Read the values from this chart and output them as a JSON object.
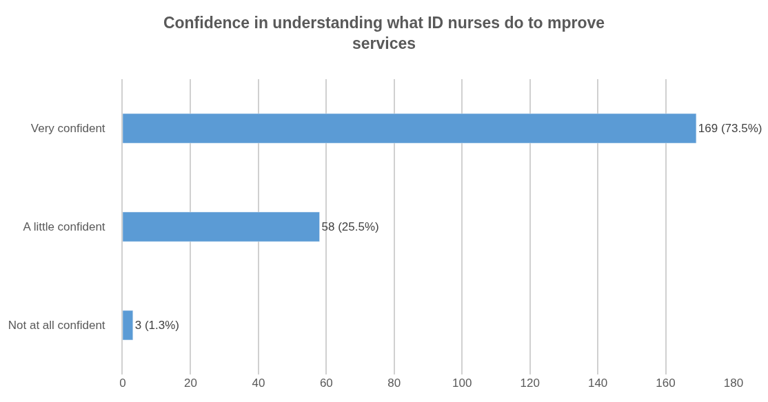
{
  "chart_data": {
    "type": "bar",
    "orientation": "horizontal",
    "title": "Confidence in understanding what ID nurses do to mprove services",
    "categories": [
      "Very confident",
      "A little confident",
      "Not at all confident"
    ],
    "values": [
      169,
      58,
      3
    ],
    "value_labels": [
      "169 (73.5%)",
      "58 (25.5%)",
      "3 (1.3%)"
    ],
    "color": "#5b9bd5",
    "xlim": [
      0,
      180
    ],
    "xticks": [
      0,
      20,
      40,
      60,
      80,
      100,
      120,
      140,
      160,
      180
    ],
    "grid": "x"
  }
}
